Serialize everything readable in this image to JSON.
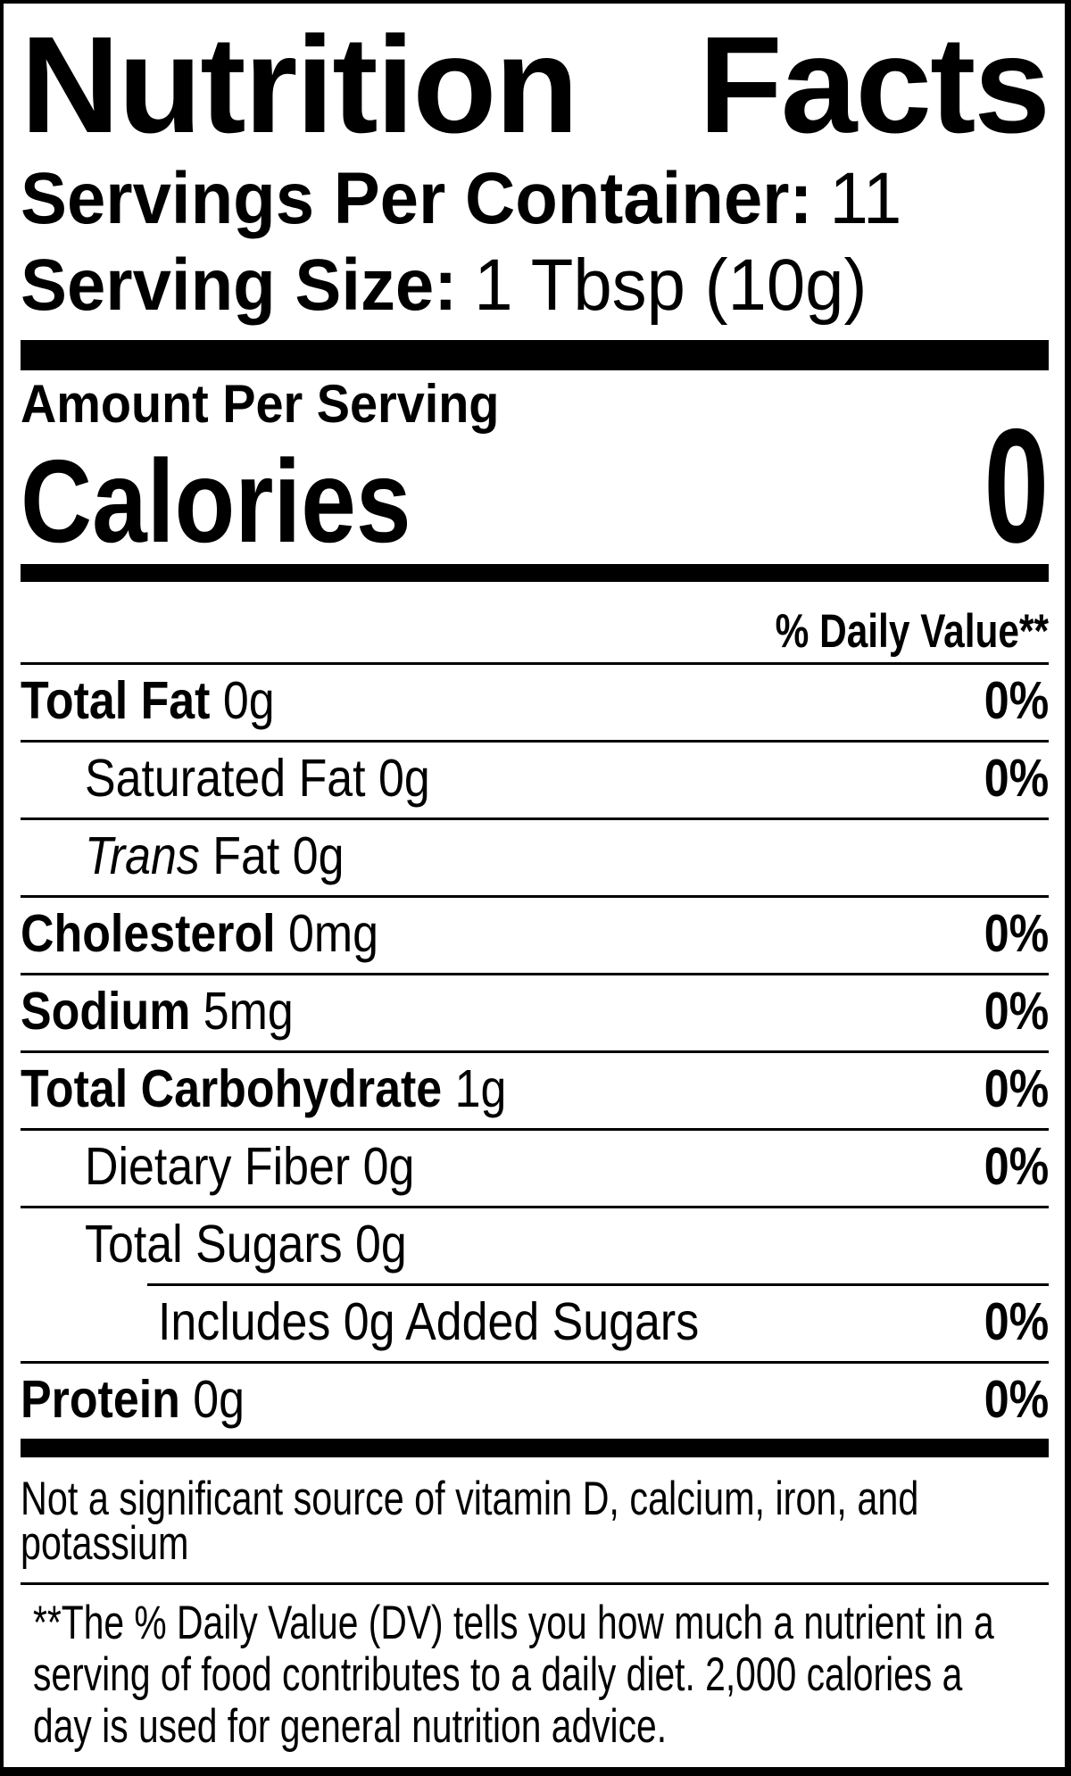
{
  "label": {
    "title_word1": "Nutrition",
    "title_word2": "Facts",
    "servings_per_container_label": "Servings Per Container:",
    "servings_per_container_value": "11",
    "serving_size_label": "Serving Size:",
    "serving_size_value": "1 Tbsp (10g)",
    "amount_per_serving": "Amount Per Serving",
    "calories_label": "Calories",
    "calories_value": "0",
    "daily_value_header": "% Daily Value**",
    "nutrient_rows": [
      {
        "segments": [
          {
            "text": "Total Fat ",
            "bold": true
          },
          {
            "text": "0g"
          }
        ],
        "dv": "0%",
        "indent": 0,
        "rule": "full"
      },
      {
        "segments": [
          {
            "text": "Saturated Fat 0g"
          }
        ],
        "dv": "0%",
        "indent": 1,
        "rule": "full"
      },
      {
        "segments": [
          {
            "text": "Trans",
            "italic": true
          },
          {
            "text": " Fat 0g"
          }
        ],
        "dv": null,
        "indent": 1,
        "rule": "full"
      },
      {
        "segments": [
          {
            "text": "Cholesterol ",
            "bold": true
          },
          {
            "text": "0mg"
          }
        ],
        "dv": "0%",
        "indent": 0,
        "rule": "full"
      },
      {
        "segments": [
          {
            "text": "Sodium ",
            "bold": true
          },
          {
            "text": "5mg"
          }
        ],
        "dv": "0%",
        "indent": 0,
        "rule": "full"
      },
      {
        "segments": [
          {
            "text": "Total Carbohydrate ",
            "bold": true
          },
          {
            "text": "1g"
          }
        ],
        "dv": "0%",
        "indent": 0,
        "rule": "full"
      },
      {
        "segments": [
          {
            "text": "Dietary Fiber 0g"
          }
        ],
        "dv": "0%",
        "indent": 1,
        "rule": "full"
      },
      {
        "segments": [
          {
            "text": "Total Sugars 0g"
          }
        ],
        "dv": null,
        "indent": 1,
        "rule": "full"
      },
      {
        "segments": [
          {
            "text": "Includes 0g Added Sugars"
          }
        ],
        "dv": "0%",
        "indent": 2,
        "rule": "indented"
      },
      {
        "segments": [
          {
            "text": "Protein ",
            "bold": true
          },
          {
            "text": "0g"
          }
        ],
        "dv": "0%",
        "indent": 0,
        "rule": "full"
      }
    ],
    "not_significant_note": "Not a significant source of vitamin D, calcium, iron, and\npotassium",
    "dv_footnote": "**The % Daily Value (DV) tells you how much a nutrient in a\nserving of food contributes to a daily diet. 2,000 calories a\nday is used for general nutrition advice."
  },
  "colors": {
    "text": "#000000",
    "background": "#ffffff"
  }
}
